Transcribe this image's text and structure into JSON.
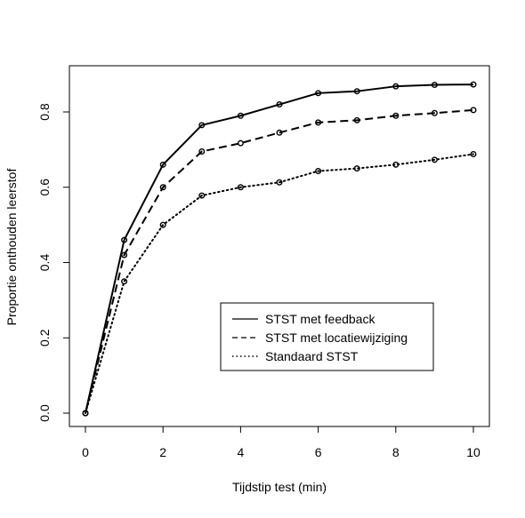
{
  "chart_data": {
    "type": "line",
    "title": "",
    "xlabel": "Tijdstip test (min)",
    "ylabel": "Proportie onthouden leerstof",
    "xlim": [
      0,
      10
    ],
    "ylim": [
      0,
      0.8
    ],
    "x_ticks": [
      0,
      2,
      4,
      6,
      8,
      10
    ],
    "y_ticks": [
      0.0,
      0.2,
      0.4,
      0.6,
      0.8
    ],
    "x_tick_labels": [
      "0",
      "2",
      "4",
      "6",
      "8",
      "10"
    ],
    "y_tick_labels": [
      "0.0",
      "0.2",
      "0.4",
      "0.6",
      "0.8"
    ],
    "legend_position": "bottom-right",
    "grid": false,
    "x": [
      0,
      1,
      2,
      3,
      4,
      5,
      6,
      7,
      8,
      9,
      10
    ],
    "series": [
      {
        "name": "STST met feedback",
        "line_style": "solid",
        "values": [
          0.0,
          0.46,
          0.66,
          0.765,
          0.79,
          0.82,
          0.85,
          0.855,
          0.868,
          0.872,
          0.873
        ]
      },
      {
        "name": "STST met locatiewijziging",
        "line_style": "dashed",
        "values": [
          0.0,
          0.42,
          0.6,
          0.695,
          0.717,
          0.745,
          0.772,
          0.778,
          0.79,
          0.797,
          0.805
        ]
      },
      {
        "name": "Standaard STST",
        "line_style": "dotted",
        "values": [
          0.0,
          0.35,
          0.5,
          0.578,
          0.6,
          0.613,
          0.643,
          0.65,
          0.66,
          0.673,
          0.688
        ]
      }
    ]
  }
}
